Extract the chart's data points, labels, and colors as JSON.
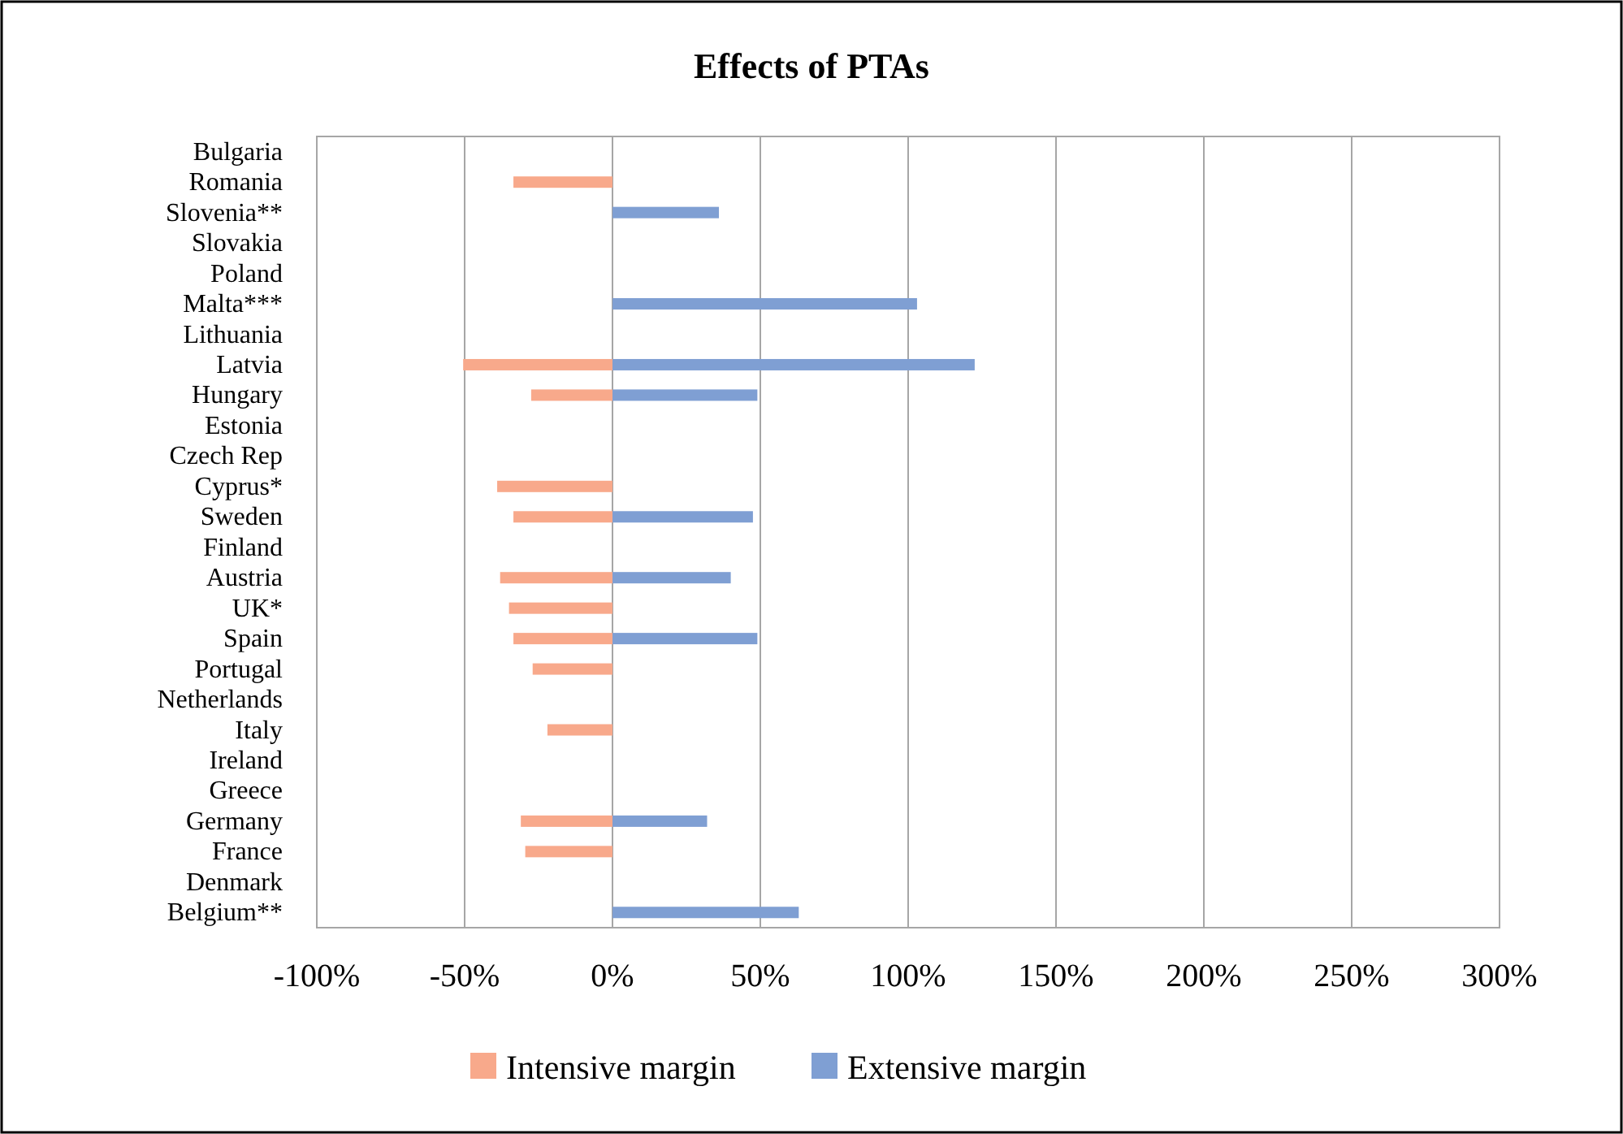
{
  "chart_data": {
    "type": "bar",
    "orientation": "horizontal",
    "title": "Effects of PTAs",
    "categories": [
      "Bulgaria",
      "Romania",
      "Slovenia**",
      "Slovakia",
      "Poland",
      "Malta***",
      "Lithuania",
      "Latvia",
      "Hungary",
      "Estonia",
      "Czech Rep",
      "Cyprus*",
      "Sweden",
      "Finland",
      "Austria",
      "UK*",
      "Spain",
      "Portugal",
      "Netherlands",
      "Italy",
      "Ireland",
      "Greece",
      "Germany",
      "France",
      "Denmark",
      "Belgium**"
    ],
    "series": [
      {
        "name": "Intensive margin",
        "color": "#f8a98b",
        "values": [
          null,
          -33.5,
          null,
          null,
          null,
          null,
          null,
          -50.5,
          -27.5,
          null,
          null,
          -39,
          -33.5,
          null,
          -38,
          -35,
          -33.5,
          -27,
          null,
          -22,
          null,
          null,
          -31,
          -29.5,
          null,
          null
        ]
      },
      {
        "name": "Extensive margin",
        "color": "#7f9fd3",
        "values": [
          null,
          null,
          36,
          null,
          null,
          103,
          null,
          122.5,
          49,
          null,
          null,
          null,
          47.5,
          null,
          40,
          null,
          49,
          null,
          null,
          null,
          null,
          null,
          32,
          null,
          null,
          63
        ]
      }
    ],
    "xlim": [
      -100,
      300
    ],
    "xticks": [
      {
        "value": -100,
        "label": "-100%"
      },
      {
        "value": -50,
        "label": "-50%"
      },
      {
        "value": 0,
        "label": "0%"
      },
      {
        "value": 50,
        "label": "50%"
      },
      {
        "value": 100,
        "label": "100%"
      },
      {
        "value": 150,
        "label": "150%"
      },
      {
        "value": 200,
        "label": "200%"
      },
      {
        "value": 250,
        "label": "250%"
      },
      {
        "value": 300,
        "label": "300%"
      }
    ],
    "grid": "x",
    "legend": "bottom"
  }
}
